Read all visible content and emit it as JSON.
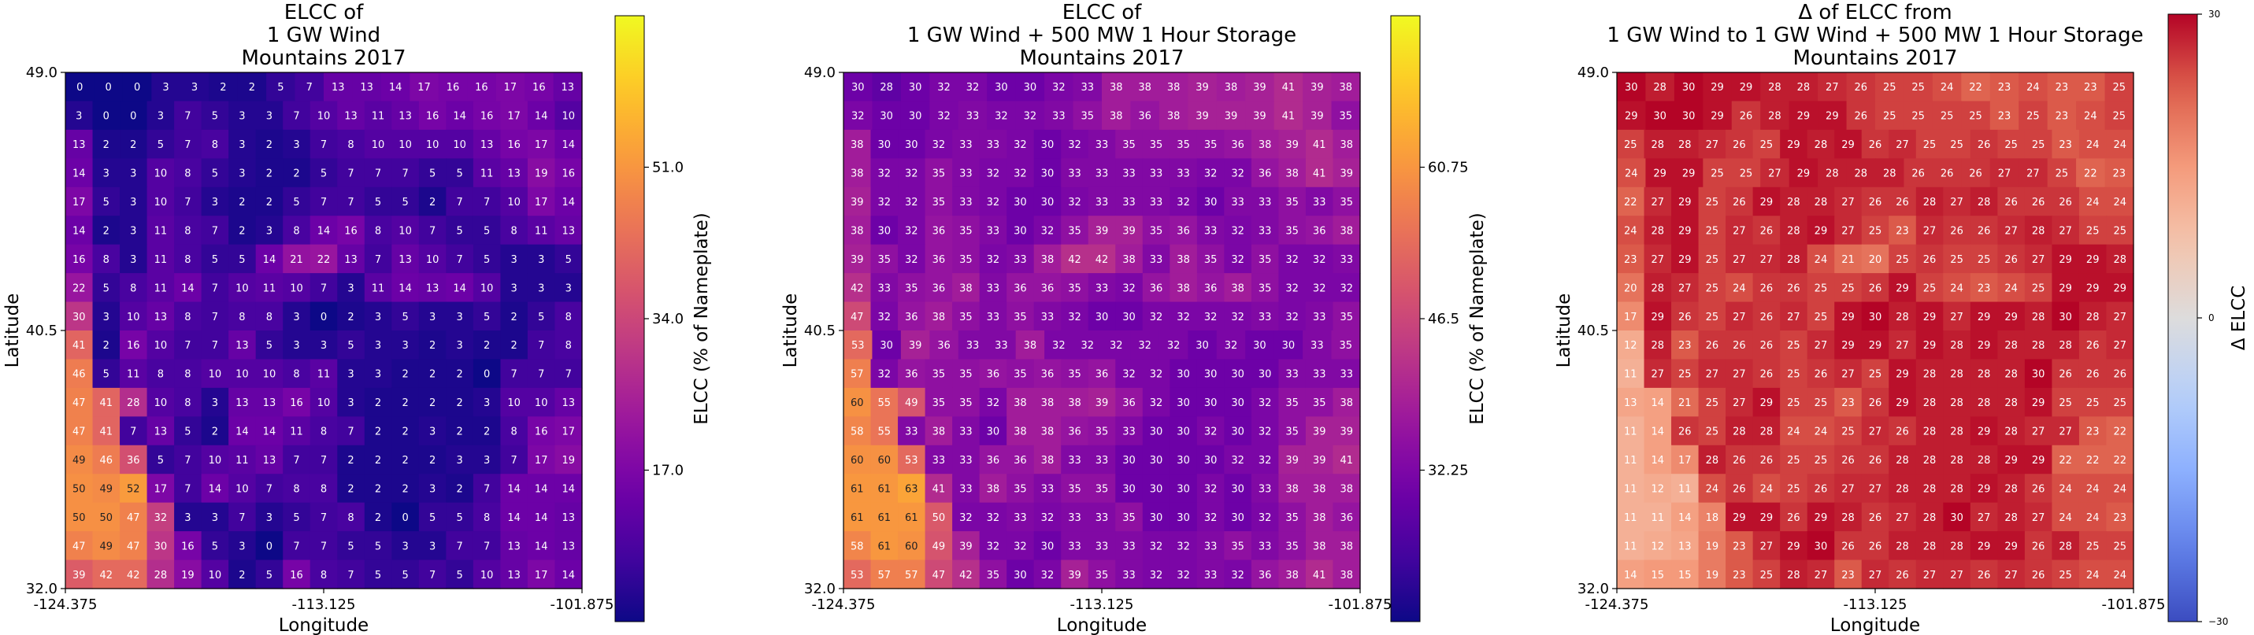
{
  "chart_data": [
    {
      "type": "heatmap",
      "title": "ELCC of\n1 GW Wind\nMountains 2017",
      "xlabel": "Longitude",
      "ylabel": "Latitude",
      "xticks": [
        "-124.375",
        "-113.125",
        "-101.875"
      ],
      "yticks": [
        "32.0",
        "40.5",
        "49.0"
      ],
      "colormap": "plasma",
      "colorbar_label": "ELCC (% of Nameplate)",
      "colorbar_ticks": [
        "17.0",
        "34.0",
        "51.0"
      ],
      "vmin": 0,
      "vmax": 68,
      "rows": [
        [
          0,
          0,
          0,
          3,
          3,
          2,
          2,
          5,
          7,
          13,
          13,
          14,
          17,
          16,
          16,
          17,
          16,
          13
        ],
        [
          3,
          0,
          0,
          3,
          7,
          5,
          3,
          3,
          7,
          10,
          13,
          11,
          13,
          16,
          14,
          16,
          17,
          14,
          10
        ],
        [
          13,
          2,
          2,
          5,
          7,
          8,
          3,
          2,
          3,
          7,
          8,
          10,
          10,
          10,
          10,
          13,
          16,
          17,
          14
        ],
        [
          14,
          3,
          3,
          10,
          8,
          5,
          3,
          2,
          2,
          5,
          7,
          7,
          7,
          5,
          5,
          11,
          13,
          19,
          16
        ],
        [
          17,
          5,
          3,
          10,
          7,
          3,
          2,
          2,
          5,
          7,
          7,
          5,
          5,
          2,
          7,
          7,
          10,
          17,
          14
        ],
        [
          14,
          2,
          3,
          11,
          8,
          7,
          2,
          3,
          8,
          14,
          16,
          8,
          10,
          7,
          5,
          5,
          8,
          11,
          13
        ],
        [
          16,
          8,
          3,
          11,
          8,
          5,
          5,
          14,
          21,
          22,
          13,
          7,
          13,
          10,
          7,
          5,
          3,
          3,
          5
        ],
        [
          22,
          5,
          8,
          11,
          14,
          7,
          10,
          11,
          10,
          7,
          3,
          11,
          14,
          13,
          14,
          10,
          3,
          3,
          3
        ],
        [
          30,
          3,
          10,
          13,
          8,
          7,
          8,
          8,
          3,
          0,
          2,
          3,
          5,
          3,
          3,
          5,
          2,
          5,
          8
        ],
        [
          41,
          2,
          16,
          10,
          7,
          7,
          13,
          5,
          3,
          3,
          5,
          3,
          3,
          2,
          3,
          2,
          2,
          7,
          8
        ],
        [
          46,
          5,
          11,
          8,
          8,
          10,
          10,
          10,
          8,
          11,
          3,
          3,
          2,
          2,
          2,
          0,
          7,
          7,
          7
        ],
        [
          47,
          41,
          28,
          10,
          8,
          3,
          13,
          13,
          16,
          10,
          3,
          2,
          2,
          2,
          2,
          3,
          10,
          10,
          13
        ],
        [
          47,
          41,
          7,
          13,
          5,
          2,
          14,
          14,
          11,
          8,
          7,
          2,
          2,
          3,
          2,
          2,
          8,
          16,
          17
        ],
        [
          49,
          46,
          36,
          5,
          7,
          10,
          11,
          13,
          7,
          7,
          2,
          2,
          2,
          2,
          3,
          3,
          7,
          17,
          19
        ],
        [
          50,
          49,
          52,
          17,
          7,
          14,
          10,
          7,
          8,
          8,
          2,
          2,
          2,
          3,
          2,
          7,
          14,
          14,
          14
        ],
        [
          50,
          50,
          47,
          32,
          3,
          3,
          7,
          3,
          5,
          7,
          8,
          2,
          0,
          5,
          5,
          8,
          14,
          14,
          13
        ],
        [
          47,
          49,
          47,
          30,
          16,
          5,
          3,
          0,
          7,
          7,
          5,
          5,
          3,
          3,
          7,
          7,
          13,
          14,
          13
        ],
        [
          39,
          42,
          42,
          28,
          19,
          10,
          2,
          5,
          16,
          8,
          7,
          5,
          5,
          7,
          5,
          10,
          13,
          17,
          14
        ]
      ]
    },
    {
      "type": "heatmap",
      "title": "ELCC of\n1 GW Wind + 500 MW 1 Hour Storage\nMountains 2017",
      "xlabel": "Longitude",
      "ylabel": "Latitude",
      "xticks": [
        "-124.375",
        "-113.125",
        "-101.875"
      ],
      "yticks": [
        "32.0",
        "40.5",
        "49.0"
      ],
      "colormap": "plasma",
      "colorbar_label": "ELCC (% of Nameplate)",
      "colorbar_ticks": [
        "32.25",
        "46.5",
        "60.75"
      ],
      "vmin": 18,
      "vmax": 75,
      "rows": [
        [
          30,
          28,
          30,
          32,
          32,
          30,
          30,
          32,
          33,
          38,
          38,
          38,
          39,
          38,
          39,
          41,
          39,
          38
        ],
        [
          32,
          30,
          30,
          32,
          33,
          32,
          32,
          33,
          35,
          38,
          36,
          38,
          39,
          39,
          39,
          41,
          39,
          35
        ],
        [
          38,
          30,
          30,
          32,
          33,
          33,
          32,
          30,
          32,
          33,
          35,
          35,
          35,
          35,
          36,
          38,
          39,
          41,
          38
        ],
        [
          38,
          32,
          32,
          35,
          33,
          32,
          32,
          30,
          33,
          33,
          33,
          33,
          33,
          32,
          32,
          36,
          38,
          41,
          39
        ],
        [
          39,
          32,
          32,
          35,
          33,
          32,
          30,
          30,
          32,
          33,
          33,
          33,
          32,
          30,
          33,
          33,
          35,
          33,
          35
        ],
        [
          38,
          30,
          32,
          36,
          35,
          33,
          30,
          32,
          35,
          39,
          39,
          35,
          36,
          33,
          32,
          33,
          35,
          36,
          38
        ],
        [
          39,
          35,
          32,
          36,
          35,
          32,
          33,
          38,
          42,
          42,
          38,
          33,
          38,
          35,
          32,
          35,
          32,
          32,
          33
        ],
        [
          42,
          33,
          35,
          36,
          38,
          33,
          36,
          36,
          35,
          33,
          32,
          36,
          38,
          36,
          38,
          35,
          32,
          32,
          32
        ],
        [
          47,
          32,
          36,
          38,
          35,
          33,
          35,
          33,
          32,
          30,
          30,
          32,
          32,
          32,
          32,
          33,
          32,
          33,
          35
        ],
        [
          53,
          30,
          39,
          36,
          33,
          33,
          38,
          32,
          32,
          32,
          32,
          32,
          30,
          32,
          30,
          30,
          33,
          35
        ],
        [
          57,
          32,
          36,
          35,
          35,
          36,
          35,
          36,
          35,
          36,
          32,
          32,
          30,
          30,
          30,
          30,
          33,
          33,
          33
        ],
        [
          60,
          55,
          49,
          35,
          35,
          32,
          38,
          38,
          38,
          39,
          36,
          32,
          30,
          30,
          30,
          32,
          35,
          35,
          38
        ],
        [
          58,
          55,
          33,
          38,
          33,
          30,
          38,
          38,
          36,
          35,
          33,
          30,
          30,
          32,
          30,
          32,
          35,
          39,
          39
        ],
        [
          60,
          60,
          53,
          33,
          33,
          36,
          36,
          38,
          33,
          33,
          30,
          30,
          30,
          30,
          32,
          32,
          39,
          39,
          41
        ],
        [
          61,
          61,
          63,
          41,
          33,
          38,
          35,
          33,
          35,
          35,
          30,
          30,
          30,
          32,
          30,
          33,
          38,
          38,
          38
        ],
        [
          61,
          61,
          61,
          50,
          32,
          32,
          33,
          32,
          33,
          33,
          35,
          30,
          30,
          32,
          30,
          32,
          35,
          38,
          36
        ],
        [
          58,
          61,
          60,
          49,
          39,
          32,
          32,
          30,
          33,
          33,
          33,
          32,
          32,
          33,
          35,
          33,
          35,
          38,
          38
        ],
        [
          53,
          57,
          57,
          47,
          42,
          35,
          30,
          32,
          39,
          35,
          33,
          32,
          32,
          33,
          32,
          36,
          38,
          41,
          38
        ]
      ]
    },
    {
      "type": "heatmap",
      "title": "Δ of ELCC from\n1 GW Wind to 1 GW Wind + 500 MW 1 Hour Storage\nMountains 2017",
      "xlabel": "Longitude",
      "ylabel": "Latitude",
      "xticks": [
        "-124.375",
        "-113.125",
        "-101.875"
      ],
      "yticks": [
        "32.0",
        "40.5",
        "49.0"
      ],
      "colormap": "coolwarm",
      "colorbar_label": "Δ ELCC",
      "colorbar_ticks": [
        "−30",
        "0",
        "30"
      ],
      "vmin": -30,
      "vmax": 30,
      "rows": [
        [
          30,
          28,
          30,
          29,
          29,
          28,
          28,
          27,
          26,
          25,
          25,
          24,
          22,
          23,
          24,
          23,
          23,
          25
        ],
        [
          29,
          30,
          30,
          29,
          26,
          28,
          29,
          29,
          26,
          25,
          25,
          25,
          25,
          23,
          25,
          23,
          24,
          25
        ],
        [
          25,
          28,
          28,
          27,
          26,
          25,
          29,
          28,
          29,
          26,
          27,
          25,
          25,
          26,
          25,
          25,
          23,
          24,
          24
        ],
        [
          24,
          29,
          29,
          25,
          25,
          27,
          29,
          28,
          28,
          28,
          26,
          26,
          26,
          27,
          27,
          25,
          22,
          23
        ],
        [
          22,
          27,
          29,
          25,
          26,
          29,
          28,
          28,
          27,
          26,
          26,
          28,
          27,
          28,
          26,
          26,
          26,
          24,
          24
        ],
        [
          24,
          28,
          29,
          25,
          27,
          26,
          28,
          29,
          27,
          25,
          23,
          27,
          26,
          26,
          27,
          28,
          27,
          25,
          25
        ],
        [
          23,
          27,
          29,
          25,
          27,
          27,
          28,
          24,
          21,
          20,
          25,
          26,
          25,
          25,
          26,
          27,
          29,
          29,
          28
        ],
        [
          20,
          28,
          27,
          25,
          24,
          26,
          26,
          25,
          25,
          26,
          29,
          25,
          24,
          23,
          24,
          25,
          29,
          29,
          29
        ],
        [
          17,
          29,
          26,
          25,
          27,
          26,
          27,
          25,
          29,
          30,
          28,
          29,
          27,
          29,
          29,
          28,
          30,
          28,
          27
        ],
        [
          12,
          28,
          23,
          26,
          26,
          26,
          25,
          27,
          29,
          29,
          27,
          29,
          28,
          29,
          28,
          28,
          28,
          26,
          27
        ],
        [
          11,
          27,
          25,
          27,
          27,
          26,
          25,
          26,
          27,
          25,
          29,
          28,
          28,
          28,
          28,
          30,
          26,
          26,
          26
        ],
        [
          13,
          14,
          21,
          25,
          27,
          29,
          25,
          25,
          23,
          26,
          29,
          28,
          28,
          28,
          28,
          29,
          25,
          25,
          25
        ],
        [
          11,
          14,
          26,
          25,
          28,
          28,
          24,
          24,
          25,
          27,
          26,
          28,
          28,
          29,
          28,
          27,
          27,
          23,
          22
        ],
        [
          11,
          14,
          17,
          28,
          26,
          26,
          25,
          25,
          26,
          26,
          28,
          28,
          28,
          28,
          29,
          29,
          22,
          22,
          22
        ],
        [
          11,
          12,
          11,
          24,
          26,
          24,
          25,
          26,
          27,
          27,
          28,
          28,
          28,
          29,
          28,
          26,
          24,
          24,
          24
        ],
        [
          11,
          11,
          14,
          18,
          29,
          29,
          26,
          29,
          28,
          26,
          27,
          28,
          30,
          27,
          28,
          27,
          24,
          24,
          23
        ],
        [
          11,
          12,
          13,
          19,
          23,
          27,
          29,
          30,
          26,
          26,
          28,
          28,
          28,
          29,
          29,
          26,
          28,
          25,
          25
        ],
        [
          14,
          15,
          15,
          19,
          23,
          25,
          28,
          27,
          23,
          27,
          26,
          27,
          27,
          26,
          27,
          26,
          25,
          24,
          24
        ]
      ]
    }
  ]
}
